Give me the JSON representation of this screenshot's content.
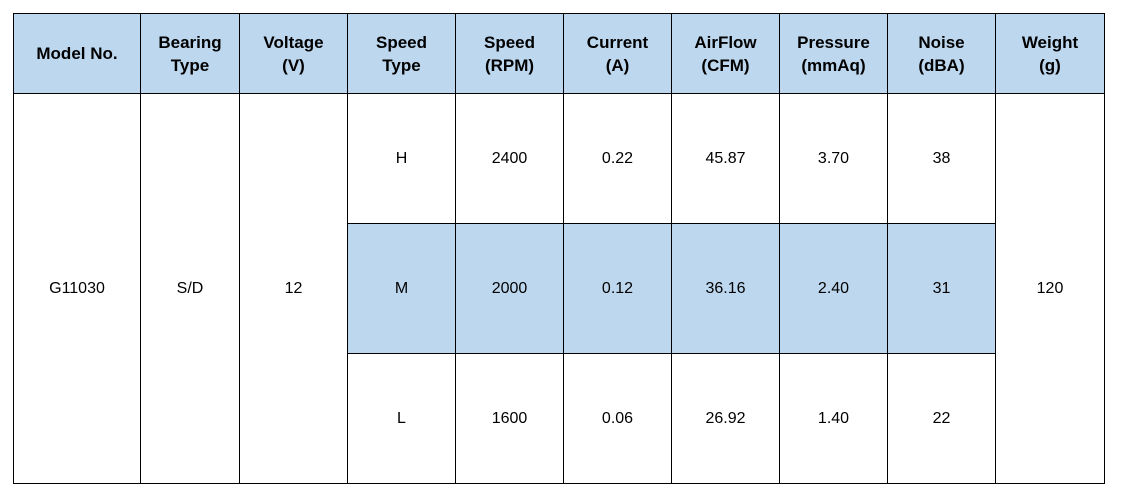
{
  "table": {
    "headers": [
      {
        "line1": "Model No.",
        "line2": ""
      },
      {
        "line1": "Bearing",
        "line2": "Type"
      },
      {
        "line1": "Voltage",
        "line2": "(V)"
      },
      {
        "line1": "Speed",
        "line2": "Type"
      },
      {
        "line1": "Speed",
        "line2": "(RPM)"
      },
      {
        "line1": "Current",
        "line2": "(A)"
      },
      {
        "line1": "AirFlow",
        "line2": "(CFM)"
      },
      {
        "line1": "Pressure",
        "line2": "(mmAq)"
      },
      {
        "line1": "Noise",
        "line2": "(dBA)"
      },
      {
        "line1": "Weight",
        "line2": "(g)"
      }
    ],
    "model_no": "G11030",
    "bearing_type": "S/D",
    "voltage": "12",
    "weight": "120",
    "rows": [
      {
        "speed_type": "H",
        "rpm": "2400",
        "current": "0.22",
        "airflow": "45.87",
        "pressure": "3.70",
        "noise": "38"
      },
      {
        "speed_type": "M",
        "rpm": "2000",
        "current": "0.12",
        "airflow": "36.16",
        "pressure": "2.40",
        "noise": "31"
      },
      {
        "speed_type": "L",
        "rpm": "1600",
        "current": "0.06",
        "airflow": "26.92",
        "pressure": "1.40",
        "noise": "22"
      }
    ],
    "colors": {
      "header_bg": "#bdd7ee",
      "highlight_row_bg": "#bdd7ee",
      "border": "#000000"
    }
  }
}
